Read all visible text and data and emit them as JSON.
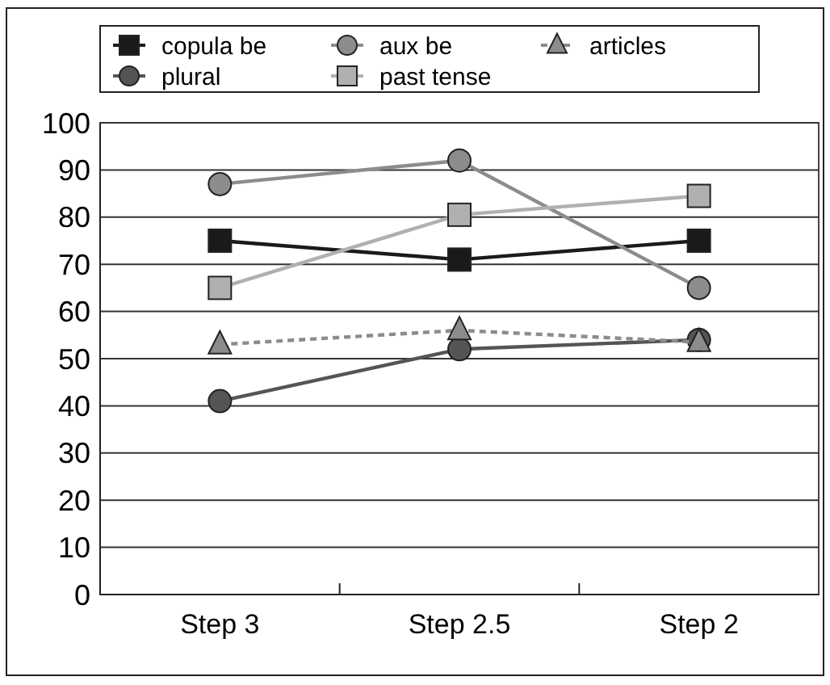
{
  "chart_data": {
    "type": "line",
    "categories": [
      "Step 3",
      "Step 2.5",
      "Step 2"
    ],
    "ylim": [
      0,
      100
    ],
    "yticks": [
      0,
      10,
      20,
      30,
      40,
      50,
      60,
      70,
      80,
      90,
      100
    ],
    "grid": "y",
    "legend": "top",
    "series": [
      {
        "name": "copula be",
        "color": "#1a1a1a",
        "values": [
          75,
          71,
          75
        ],
        "marker": "square"
      },
      {
        "name": "plural",
        "color": "#555555",
        "values": [
          41,
          52,
          54
        ],
        "marker": "circle"
      },
      {
        "name": "aux be",
        "color": "#8c8c8c",
        "values": [
          87,
          92,
          65
        ],
        "marker": "circle"
      },
      {
        "name": "past tense",
        "color": "#b0b0b0",
        "values": [
          65,
          80.5,
          84.5
        ],
        "marker": "square"
      },
      {
        "name": "articles",
        "color": "#8c8c8c",
        "values": [
          53,
          56,
          53.5
        ],
        "marker": "triangle",
        "line_style": "dashed"
      }
    ]
  }
}
